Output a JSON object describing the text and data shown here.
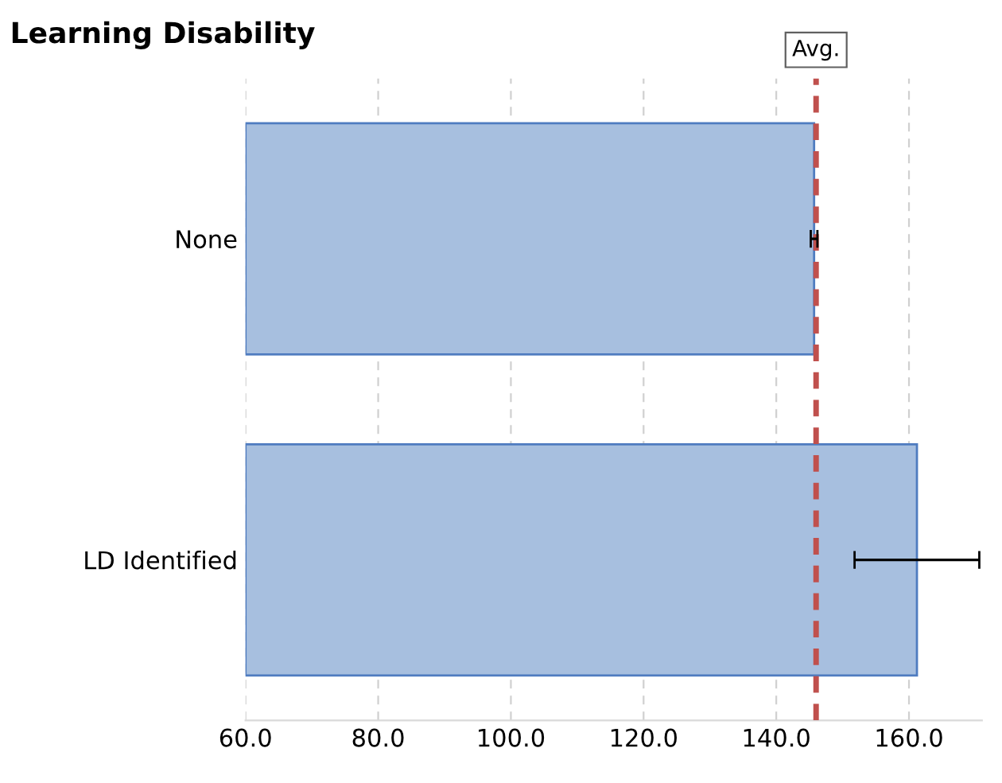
{
  "chart_data": {
    "type": "bar",
    "orientation": "horizontal",
    "title": "Learning Disability",
    "categories": [
      "None",
      "LD Identified"
    ],
    "values": [
      145.7,
      161.2
    ],
    "errors": [
      0.5,
      9.4
    ],
    "color": "#a7bfdf",
    "xlim": [
      60,
      171
    ],
    "xticks": [
      {
        "value": 60,
        "label": "60.0"
      },
      {
        "value": 80,
        "label": "80.0"
      },
      {
        "value": 100,
        "label": "100.0"
      },
      {
        "value": 120,
        "label": "120.0"
      },
      {
        "value": 140,
        "label": "140.0"
      },
      {
        "value": 160,
        "label": "160.0"
      }
    ],
    "grid": "x",
    "ref_lines": [
      {
        "axis": "x",
        "value": 146,
        "label": "Avg.",
        "color": "#c0504d",
        "line_style": "dashed"
      }
    ]
  }
}
